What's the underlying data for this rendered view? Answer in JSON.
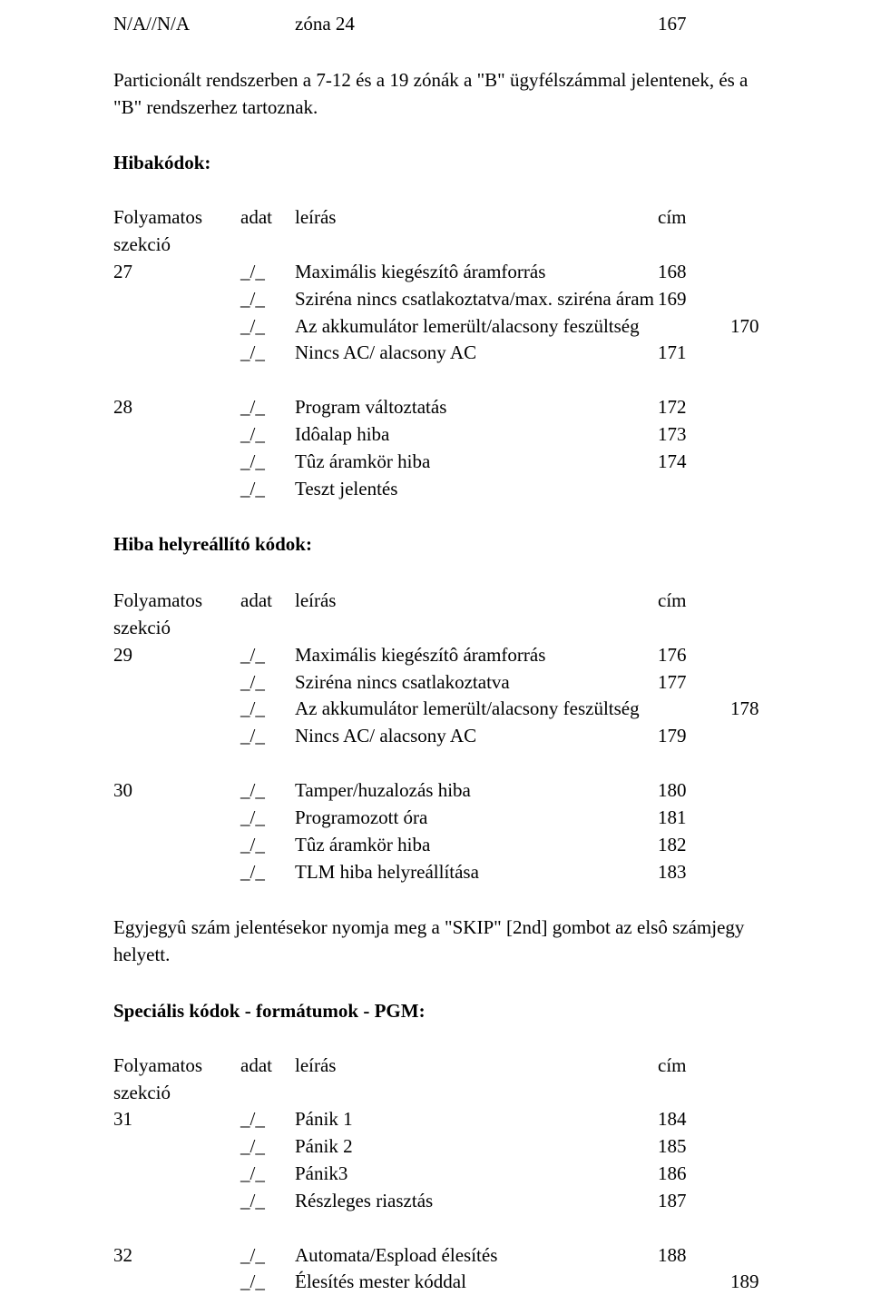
{
  "line1": {
    "c1": "N/A//N/A",
    "c3": "zóna 24",
    "c4": "167"
  },
  "para1": "Particionált rendszerben a 7-12 és a 19 zónák a \"B\" ügyfélszámmal jelentenek, és a \"B\" rendszerhez tartoznak.",
  "hibakodok_label": "Hibakódok:",
  "header": {
    "c1": "Folyamatos",
    "c2": "adat",
    "c3": "leírás",
    "c4": "cím"
  },
  "szekcio": "szekció",
  "s27": {
    "id": "27",
    "r1": {
      "c2": "_/_",
      "c3": "Maximális kiegészítô áramforrás",
      "c4": "168"
    },
    "r2": {
      "c2": "_/_",
      "c3": "Sziréna nincs csatlakoztatva/max. sziréna áram",
      "c4": "169"
    },
    "r3": {
      "c2": "_/_",
      "c3": "Az akkumulátor lemerült/alacsony feszültség",
      "c5": "170"
    },
    "r4": {
      "c2": "_/_",
      "c3": "Nincs AC/ alacsony AC",
      "c4": "171"
    }
  },
  "s28": {
    "id": "28",
    "r1": {
      "c2": "_/_",
      "c3": "Program változtatás",
      "c4": "172"
    },
    "r2": {
      "c2": "_/_",
      "c3": "Idôalap hiba",
      "c4": "173"
    },
    "r3": {
      "c2": "_/_",
      "c3": "Tûz áramkör hiba",
      "c4": "174"
    },
    "r4": {
      "c2": "_/_",
      "c3": "Teszt jelentés"
    }
  },
  "hiba_helyre": "Hiba helyreállító kódok:",
  "s29": {
    "id": "29",
    "r1": {
      "c2": "_/_",
      "c3": "Maximális kiegészítô áramforrás",
      "c4": "176"
    },
    "r2": {
      "c2": "_/_",
      "c3": "Sziréna nincs csatlakoztatva",
      "c4": "177"
    },
    "r3": {
      "c2": "_/_",
      "c3": "Az akkumulátor lemerült/alacsony feszültség",
      "c5": "178"
    },
    "r4": {
      "c2": "_/_",
      "c3": "Nincs AC/ alacsony AC",
      "c4": "179"
    }
  },
  "s30": {
    "id": "30",
    "r1": {
      "c2": "_/_",
      "c3": "Tamper/huzalozás hiba",
      "c4": "180"
    },
    "r2": {
      "c2": "_/_",
      "c3": "Programozott óra",
      "c4": "181"
    },
    "r3": {
      "c2": "_/_",
      "c3": "Tûz áramkör hiba",
      "c4": "182"
    },
    "r4": {
      "c2": "_/_",
      "c3": "TLM hiba helyreállítása",
      "c4": "183"
    }
  },
  "para2": "Egyjegyû szám jelentésekor nyomja meg a \"SKIP\" [2nd] gombot az elsô számjegy helyett.",
  "spec_label": "Speciális kódok - formátumok - PGM:",
  "s31": {
    "id": "31",
    "r1": {
      "c2": "_/_",
      "c3": "Pánik 1",
      "c4": "184"
    },
    "r2": {
      "c2": "_/_",
      "c3": "Pánik 2",
      "c4": "185"
    },
    "r3": {
      "c2": "_/_",
      "c3": "Pánik3",
      "c4": "186"
    },
    "r4": {
      "c2": "_/_",
      "c3": "Részleges riasztás",
      "c4": "187"
    }
  },
  "s32": {
    "id": "32",
    "r1": {
      "c2": "_/_",
      "c3": "Automata/Espload élesítés",
      "c4": "188"
    },
    "r2": {
      "c2": "_/_",
      "c3": "Élesítés mester kóddal",
      "c5": "189"
    }
  }
}
